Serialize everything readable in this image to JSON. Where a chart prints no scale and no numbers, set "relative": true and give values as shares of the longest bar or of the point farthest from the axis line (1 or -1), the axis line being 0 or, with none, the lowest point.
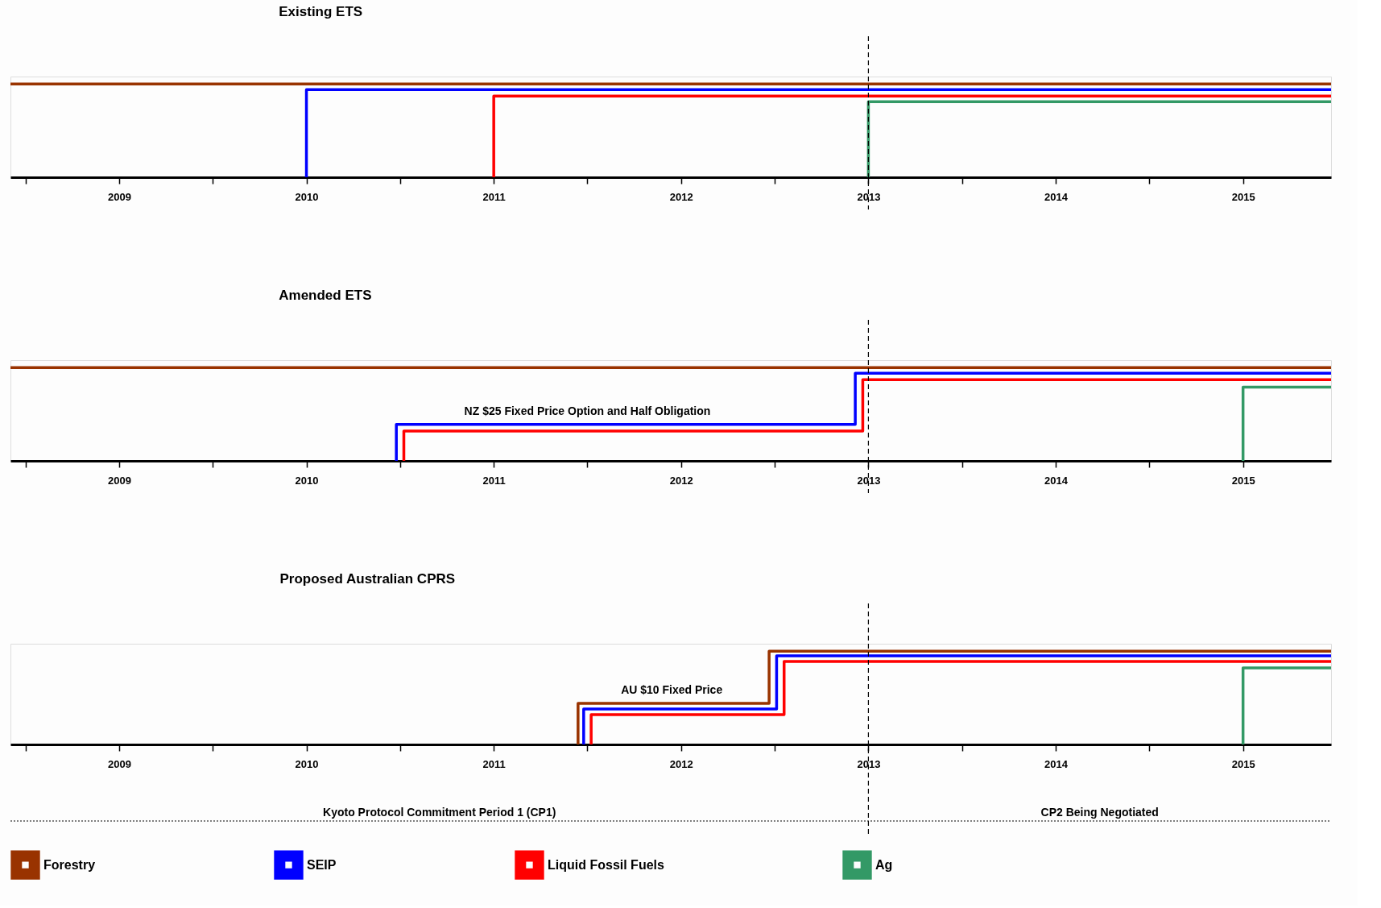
{
  "chart_data": [
    {
      "type": "step",
      "title": "Existing ETS",
      "relative": true,
      "xlim": [
        2008.42,
        2015.47
      ],
      "xticks": [
        {
          "value": 2008.5,
          "label": null
        },
        2009,
        {
          "value": 2009.5,
          "label": null
        },
        2010,
        {
          "value": 2010.5,
          "label": null
        },
        2011,
        {
          "value": 2011.5,
          "label": null
        },
        2012,
        {
          "value": 2012.5,
          "label": null
        },
        2013,
        {
          "value": 2013.5,
          "label": null
        },
        2014,
        {
          "value": 2014.5,
          "label": null
        },
        2015
      ],
      "grid": false,
      "legend": false,
      "line_style": "solid",
      "marker": "none",
      "series": [
        {
          "color": "#993300",
          "x": [
            2008.42,
            2015.47
          ],
          "values": [
            1,
            1
          ]
        },
        {
          "color": "#0000ff",
          "x": [
            2010,
            2010,
            2015.47
          ],
          "values": [
            0,
            0.94,
            0.94
          ]
        },
        {
          "color": "#ff0000",
          "x": [
            2011,
            2011,
            2015.47
          ],
          "values": [
            0,
            0.87,
            0.87
          ]
        },
        {
          "color": "#339966",
          "x": [
            2013,
            2013,
            2015.47
          ],
          "values": [
            0,
            0.81,
            0.81
          ]
        }
      ],
      "ref_lines": [
        {
          "axis": "x",
          "value": 2013,
          "line_style": "dashed",
          "color": "#000000"
        }
      ]
    },
    {
      "type": "step",
      "title": "Amended ETS",
      "relative": true,
      "xlim": [
        2008.42,
        2015.47
      ],
      "xticks": [
        {
          "value": 2008.5,
          "label": null
        },
        2009,
        {
          "value": 2009.5,
          "label": null
        },
        2010,
        {
          "value": 2010.5,
          "label": null
        },
        2011,
        {
          "value": 2011.5,
          "label": null
        },
        2012,
        {
          "value": 2012.5,
          "label": null
        },
        2013,
        {
          "value": 2013.5,
          "label": null
        },
        2014,
        {
          "value": 2014.5,
          "label": null
        },
        2015
      ],
      "grid": false,
      "legend": false,
      "line_style": "solid",
      "marker": "none",
      "series": [
        {
          "color": "#993300",
          "x": [
            2008.42,
            2015.47
          ],
          "values": [
            1,
            1
          ]
        },
        {
          "color": "#0000ff",
          "x": [
            2010.48,
            2010.48,
            2012.93,
            2012.93,
            2015.47
          ],
          "values": [
            0,
            0.39,
            0.39,
            0.94,
            0.94
          ]
        },
        {
          "color": "#ff0000",
          "x": [
            2010.52,
            2010.52,
            2012.97,
            2012.97,
            2015.47
          ],
          "values": [
            0,
            0.32,
            0.32,
            0.87,
            0.87
          ]
        },
        {
          "color": "#339966",
          "x": [
            2015,
            2015,
            2015.47
          ],
          "values": [
            0,
            0.79,
            0.79
          ]
        }
      ],
      "annotations": [
        {
          "text": "NZ $25 Fixed Price Option and Half Obligation",
          "x": 2011.5,
          "y": 0.39
        }
      ],
      "ref_lines": [
        {
          "axis": "x",
          "value": 2013,
          "line_style": "dashed",
          "color": "#000000"
        }
      ]
    },
    {
      "type": "step",
      "title": "Proposed Australian CPRS",
      "relative": true,
      "xlim": [
        2008.42,
        2015.47
      ],
      "xticks": [
        {
          "value": 2008.5,
          "label": null
        },
        2009,
        {
          "value": 2009.5,
          "label": null
        },
        2010,
        {
          "value": 2010.5,
          "label": null
        },
        2011,
        {
          "value": 2011.5,
          "label": null
        },
        2012,
        {
          "value": 2012.5,
          "label": null
        },
        2013,
        {
          "value": 2013.5,
          "label": null
        },
        2014,
        {
          "value": 2014.5,
          "label": null
        },
        2015
      ],
      "grid": false,
      "legend": "bottom",
      "line_style": "solid",
      "marker": "none",
      "series": [
        {
          "name": "Forestry",
          "color": "#993300",
          "x": [
            2011.45,
            2011.45,
            2012.47,
            2012.47,
            2015.47
          ],
          "values": [
            0,
            0.44,
            0.44,
            1,
            1
          ]
        },
        {
          "name": "SEIP",
          "color": "#0000ff",
          "x": [
            2011.48,
            2011.48,
            2012.51,
            2012.51,
            2015.47
          ],
          "values": [
            0,
            0.38,
            0.38,
            0.95,
            0.95
          ]
        },
        {
          "name": "Liquid Fossil Fuels",
          "color": "#ff0000",
          "x": [
            2011.52,
            2011.52,
            2012.55,
            2012.55,
            2015.47
          ],
          "values": [
            0,
            0.32,
            0.32,
            0.89,
            0.89
          ]
        },
        {
          "name": "Ag",
          "color": "#339966",
          "x": [
            2015,
            2015,
            2015.47
          ],
          "values": [
            0,
            0.82,
            0.82
          ]
        }
      ],
      "annotations": [
        {
          "text": "AU $10 Fixed Price",
          "x": 2011.95,
          "y": 0.44
        },
        "Kyoto Protocol Commitment Period 1 (CP1)",
        "CP2 Being Negotiated"
      ],
      "ref_lines": [
        {
          "axis": "x",
          "value": 2013,
          "line_style": "dashed",
          "color": "#000000"
        }
      ]
    }
  ]
}
